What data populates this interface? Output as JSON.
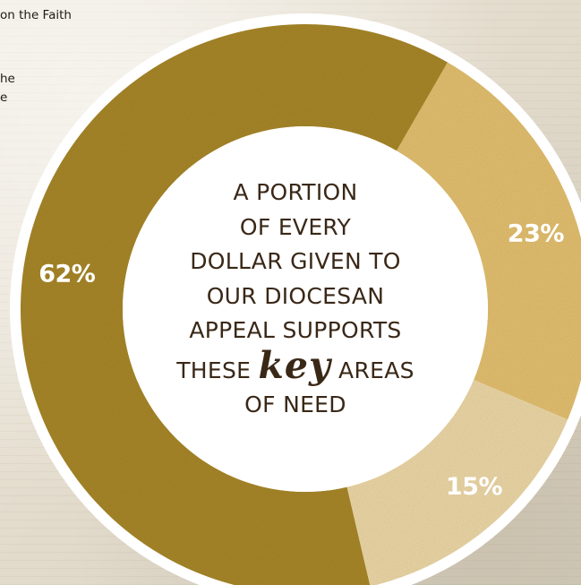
{
  "background_fragments": {
    "line1": "on the Faith",
    "line2": "he",
    "line3": "e"
  },
  "center_message": {
    "line1": "A PORTION",
    "line2": "OF EVERY",
    "line3": "DOLLAR GIVEN TO",
    "line4": "OUR DIOCESAN",
    "line5": "APPEAL SUPPORTS",
    "line6_before": "THESE",
    "line6_key": "key",
    "line6_after": "AREAS",
    "line7": "OF NEED"
  },
  "colors": {
    "ring": "#ffffff",
    "slice_62": "#a8872c",
    "slice_23": "#e3c070",
    "slice_15": "#ecd7a6",
    "text": "#3a2817"
  },
  "chart_data": {
    "type": "pie",
    "donut": true,
    "slices": [
      {
        "label": "62%",
        "value": 62,
        "color": "#a8872c"
      },
      {
        "label": "23%",
        "value": 23,
        "color": "#e3c070"
      },
      {
        "label": "15%",
        "value": 15,
        "color": "#ecd7a6"
      }
    ],
    "title": "",
    "legend": "none"
  }
}
